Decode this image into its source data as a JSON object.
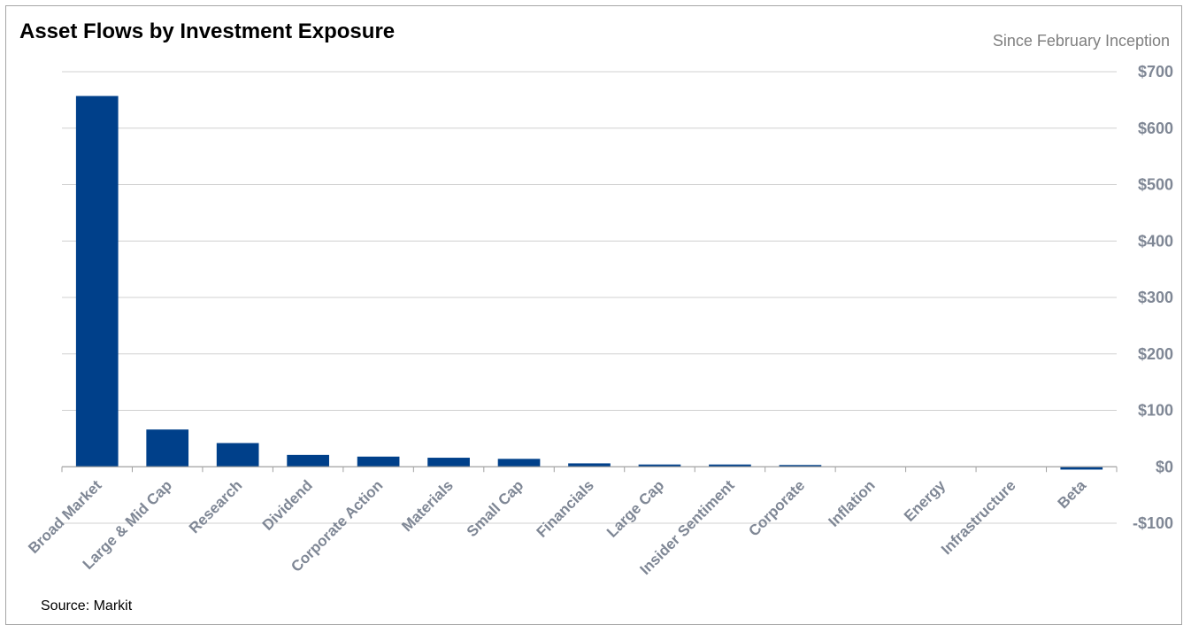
{
  "title": "Asset Flows by Investment Exposure",
  "subtitle": "Since February Inception",
  "source": "Source: Markit",
  "colors": {
    "bar": "#00408a",
    "grid": "#d0d0d0",
    "axis": "#a0a0a0",
    "tick_text": "#7f8795"
  },
  "chart_data": {
    "type": "bar",
    "title": "Asset Flows by Investment Exposure",
    "subtitle": "Since February Inception",
    "xlabel": "",
    "ylabel": "",
    "categories": [
      "Broad Market",
      "Large & Mid Cap",
      "Research",
      "Dividend",
      "Corporate Action",
      "Materials",
      "Small Cap",
      "Financials",
      "Large Cap",
      "Insider Sentiment",
      "Corporate",
      "Inflation",
      "Energy",
      "Infrastructure",
      "Beta"
    ],
    "values": [
      657,
      66,
      42,
      21,
      18,
      16,
      14,
      6,
      4,
      4,
      2,
      0,
      0,
      0,
      -5
    ],
    "ylim": [
      -100,
      700
    ],
    "yticks": [
      700,
      600,
      500,
      400,
      300,
      200,
      100,
      0,
      -100
    ],
    "ytick_labels": [
      "$700",
      "$600",
      "$500",
      "$400",
      "$300",
      "$200",
      "$100",
      "$0",
      "-$100"
    ],
    "y_axis_side": "right",
    "grid": true,
    "legend": "none"
  }
}
